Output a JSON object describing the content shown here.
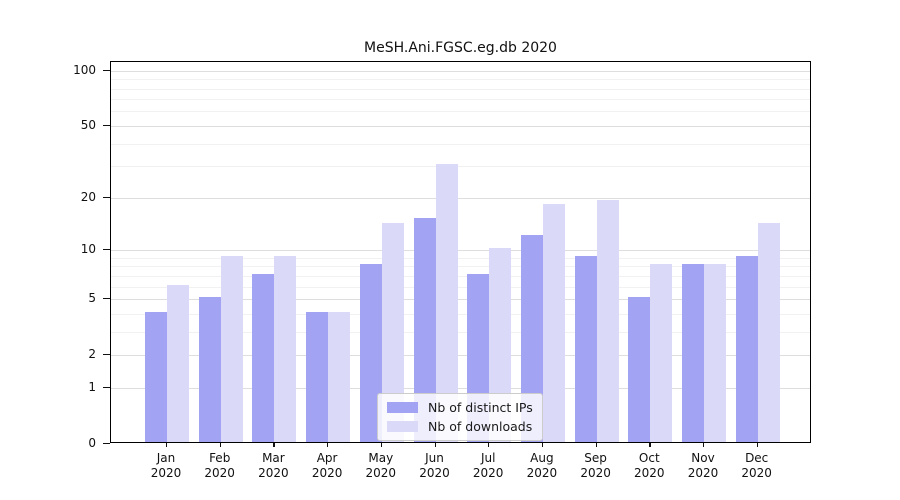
{
  "chart_data": {
    "type": "bar",
    "title": "MeSH.Ani.FGSC.eg.db 2020",
    "year_label": "2020",
    "categories": [
      "Jan",
      "Feb",
      "Mar",
      "Apr",
      "May",
      "Jun",
      "Jul",
      "Aug",
      "Sep",
      "Oct",
      "Nov",
      "Dec"
    ],
    "series": [
      {
        "name": "Nb of distinct IPs",
        "color": "#a3a3f3",
        "values": [
          4,
          5,
          7,
          4,
          8,
          15,
          7,
          12,
          9,
          5,
          8,
          9
        ]
      },
      {
        "name": "Nb of downloads",
        "color": "#dadaf8",
        "values": [
          6,
          9,
          9,
          4,
          14,
          30,
          10,
          18,
          19,
          8,
          8,
          14
        ]
      }
    ],
    "y_ticks": [
      0,
      1,
      2,
      5,
      10,
      20,
      50,
      100
    ],
    "y_minor_ticks": [
      3,
      4,
      6,
      7,
      8,
      9,
      30,
      40,
      60,
      70,
      80,
      90
    ],
    "y_scale": "log1p",
    "ylim": [
      0,
      111.4
    ],
    "xlabel": "",
    "ylabel": "",
    "grid": true,
    "legend_position": "lower center"
  }
}
